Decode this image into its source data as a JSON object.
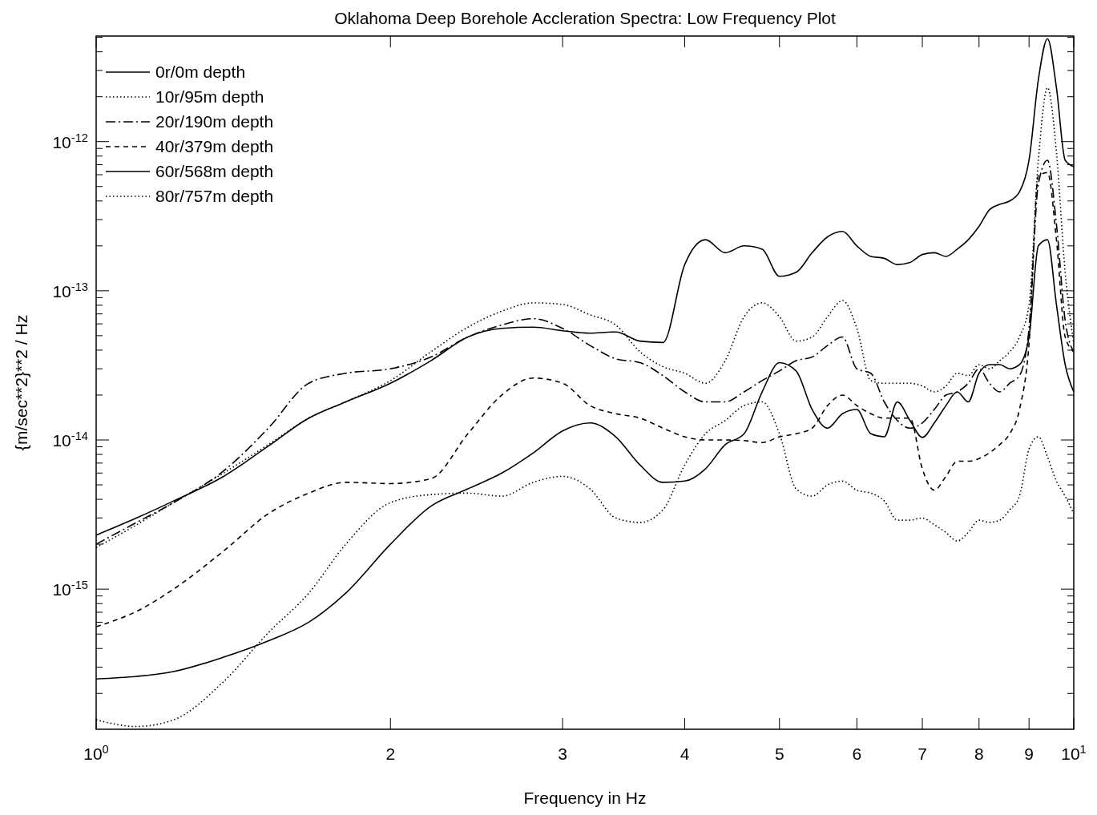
{
  "chart_data": {
    "type": "line",
    "title": "Oklahoma Deep Borehole Accleration Spectra: Low Frequency Plot",
    "xlabel": "Frequency in Hz",
    "ylabel": "{m/sec**2}**2 / Hz",
    "log": "xy",
    "grid": false,
    "legend": "top left",
    "x": [
      1,
      1.1,
      1.2,
      1.35,
      1.5,
      1.65,
      1.8,
      2,
      2.2,
      2.4,
      2.6,
      2.8,
      3,
      3.2,
      3.4,
      3.6,
      3.8,
      4,
      4.2,
      4.4,
      4.6,
      4.8,
      5,
      5.2,
      5.4,
      5.6,
      5.8,
      6,
      6.2,
      6.4,
      6.6,
      6.8,
      7,
      7.2,
      7.4,
      7.6,
      7.8,
      8,
      8.2,
      8.4,
      8.6,
      8.8,
      9,
      9.2,
      9.4,
      9.6,
      9.8,
      10
    ],
    "xlim": [
      1,
      10
    ],
    "xticks": [
      {
        "value": 1,
        "label": "10$^{0}$"
      },
      2,
      3,
      4,
      5,
      6,
      7,
      8,
      9,
      {
        "value": 10,
        "label": "10$^{1}$"
      }
    ],
    "ylim": [
      1.15e-16,
      5.1e-12
    ],
    "yticks": [
      {
        "value": 2e-16,
        "label": null
      },
      {
        "value": 3e-16,
        "label": null
      },
      {
        "value": 4e-16,
        "label": null
      },
      {
        "value": 5e-16,
        "label": null
      },
      {
        "value": 6e-16,
        "label": null
      },
      {
        "value": 7e-16,
        "label": null
      },
      {
        "value": 8e-16,
        "label": null
      },
      {
        "value": 9e-16,
        "label": null
      },
      {
        "value": 1e-15,
        "label": "10$^{-15}$"
      },
      {
        "value": 2e-15,
        "label": null
      },
      {
        "value": 3e-15,
        "label": null
      },
      {
        "value": 4e-15,
        "label": null
      },
      {
        "value": 5e-15,
        "label": null
      },
      {
        "value": 6e-15,
        "label": null
      },
      {
        "value": 7e-15,
        "label": null
      },
      {
        "value": 8e-15,
        "label": null
      },
      {
        "value": 9e-15,
        "label": null
      },
      {
        "value": 1e-14,
        "label": "10$^{-14}$"
      },
      {
        "value": 2e-14,
        "label": null
      },
      {
        "value": 3e-14,
        "label": null
      },
      {
        "value": 4e-14,
        "label": null
      },
      {
        "value": 5e-14,
        "label": null
      },
      {
        "value": 6e-14,
        "label": null
      },
      {
        "value": 7e-14,
        "label": null
      },
      {
        "value": 8e-14,
        "label": null
      },
      {
        "value": 9e-14,
        "label": null
      },
      {
        "value": 1e-13,
        "label": "10$^{-13}$"
      },
      {
        "value": 2e-13,
        "label": null
      },
      {
        "value": 3e-13,
        "label": null
      },
      {
        "value": 4e-13,
        "label": null
      },
      {
        "value": 5e-13,
        "label": null
      },
      {
        "value": 6e-13,
        "label": null
      },
      {
        "value": 7e-13,
        "label": null
      },
      {
        "value": 8e-13,
        "label": null
      },
      {
        "value": 9e-13,
        "label": null
      },
      {
        "value": 1e-12,
        "label": "10$^{-12}$"
      },
      {
        "value": 2e-12,
        "label": null
      },
      {
        "value": 3e-12,
        "label": null
      },
      {
        "value": 4e-12,
        "label": null
      },
      {
        "value": 5e-12,
        "label": null
      }
    ],
    "series": [
      {
        "name": "0r/0m depth",
        "color": "#000000",
        "line_style": "solid",
        "values": [
          2.3e-15,
          3e-15,
          3.9e-15,
          5.7e-15,
          9.1e-15,
          1.4e-14,
          1.8e-14,
          2.4e-14,
          3.4e-14,
          4.9e-14,
          5.6e-14,
          5.7e-14,
          5.4e-14,
          5.2e-14,
          5.3e-14,
          4.6e-14,
          4.5e-14,
          1.5e-13,
          2.2e-13,
          1.8e-13,
          2e-13,
          1.9e-13,
          1.25e-13,
          1.33e-13,
          1.8e-13,
          2.3e-13,
          2.5e-13,
          2e-13,
          1.7e-13,
          1.65e-13,
          1.5e-13,
          1.55e-13,
          1.75e-13,
          1.8e-13,
          1.7e-13,
          1.9e-13,
          2.2e-13,
          2.7e-13,
          3.5e-13,
          3.8e-13,
          4e-13,
          4.6e-13,
          7.5e-13,
          2.6e-12,
          4.9e-12,
          2.3e-12,
          7.5e-13,
          6.8e-13
        ]
      },
      {
        "name": "10r/95m depth",
        "color": "#000000",
        "line_style": "dotted",
        "values": [
          1.9e-15,
          2.7e-15,
          3.8e-15,
          6e-15,
          9.3e-15,
          1.4e-14,
          1.8e-14,
          2.5e-14,
          3.9e-14,
          5.7e-14,
          7.3e-14,
          8.3e-14,
          8.1e-14,
          6.9e-14,
          5.9e-14,
          3.9e-14,
          3.1e-14,
          2.8e-14,
          2.4e-14,
          3.4e-14,
          6.7e-14,
          8.3e-14,
          6.7e-14,
          4.6e-14,
          4.9e-14,
          6.7e-14,
          8.6e-14,
          5.6e-14,
          2.5e-14,
          2.4e-14,
          2.4e-14,
          2.4e-14,
          2.3e-14,
          2.1e-14,
          2.3e-14,
          2.8e-14,
          2.7e-14,
          3.2e-14,
          3e-14,
          3.4e-14,
          3.9e-14,
          4.9e-14,
          8.1e-14,
          7.5e-13,
          2.3e-12,
          8.5e-13,
          1.33e-13,
          4.4e-14
        ]
      },
      {
        "name": "20r/190m depth",
        "color": "#000000",
        "line_style": "dashdot",
        "values": [
          2e-15,
          2.8e-15,
          3.8e-15,
          6.2e-15,
          1.2e-14,
          2.4e-14,
          2.8e-14,
          3e-14,
          3.6e-14,
          4.9e-14,
          5.9e-14,
          6.5e-14,
          5.6e-14,
          4.3e-14,
          3.5e-14,
          3.3e-14,
          2.7e-14,
          2.1e-14,
          1.8e-14,
          1.8e-14,
          2.1e-14,
          2.5e-14,
          2.9e-14,
          3.4e-14,
          3.6e-14,
          4.3e-14,
          4.9e-14,
          3e-14,
          2.8e-14,
          1.8e-14,
          1.35e-14,
          1.2e-14,
          1.3e-14,
          1.6e-14,
          2e-14,
          2.1e-14,
          2.4e-14,
          3e-14,
          2.4e-14,
          2.1e-14,
          2.4e-14,
          2.7e-14,
          5.6e-14,
          5.2e-13,
          7.5e-13,
          2.8e-13,
          6.3e-14,
          3.9e-14
        ]
      },
      {
        "name": "40r/379m depth",
        "color": "#000000",
        "line_style": "dashed",
        "values": [
          5.6e-16,
          7.1e-16,
          1e-15,
          1.8e-15,
          3.2e-15,
          4.4e-15,
          5.2e-15,
          5.1e-15,
          5.5e-15,
          1.1e-14,
          2e-14,
          2.6e-14,
          2.4e-14,
          1.7e-14,
          1.5e-14,
          1.4e-14,
          1.2e-14,
          1.05e-14,
          1e-14,
          1e-14,
          9.9e-15,
          9.6e-15,
          1.05e-14,
          1.1e-14,
          1.2e-14,
          1.7e-14,
          2e-14,
          1.7e-14,
          1.5e-14,
          1.4e-14,
          1.4e-14,
          1.4e-14,
          6.4e-15,
          4.6e-15,
          5.7e-15,
          7.2e-15,
          7.2e-15,
          7.5e-15,
          8.2e-15,
          9.3e-15,
          1.1e-14,
          1.6e-14,
          4.4e-14,
          5.9e-13,
          6.2e-13,
          2.2e-13,
          4.9e-14,
          3.9e-14
        ]
      },
      {
        "name": "60r/568m depth",
        "color": "#000000",
        "line_style": "solid",
        "values": [
          2.5e-16,
          2.6e-16,
          2.8e-16,
          3.5e-16,
          4.5e-16,
          6e-16,
          9.4e-16,
          2e-15,
          3.6e-15,
          4.7e-15,
          6e-15,
          8.2e-15,
          1.15e-14,
          1.3e-14,
          1.05e-14,
          6.8e-15,
          5.2e-15,
          5.3e-15,
          6.4e-15,
          9.3e-15,
          1.1e-14,
          2.1e-14,
          3.3e-14,
          2.9e-14,
          1.6e-14,
          1.2e-14,
          1.5e-14,
          1.6e-14,
          1.1e-14,
          1.05e-14,
          1.8e-14,
          1.35e-14,
          1.04e-14,
          1.3e-14,
          1.7e-14,
          2.1e-14,
          1.8e-14,
          2.8e-14,
          3.2e-14,
          3.2e-14,
          3e-14,
          3.2e-14,
          4.9e-14,
          2e-13,
          2.2e-13,
          8.1e-14,
          3.2e-14,
          2.1e-14
        ]
      },
      {
        "name": "80r/757m depth",
        "color": "#000000",
        "line_style": "dotted",
        "values": [
          1.33e-16,
          1.2e-16,
          1.33e-16,
          2.4e-16,
          5.1e-16,
          9.4e-16,
          2e-15,
          3.8e-15,
          4.3e-15,
          4.4e-15,
          4.2e-15,
          5.2e-15,
          5.7e-15,
          4.7e-15,
          3e-15,
          2.8e-15,
          3.4e-15,
          6.8e-15,
          1.1e-14,
          1.35e-14,
          1.7e-14,
          1.8e-14,
          1.1e-14,
          4.7e-15,
          4.2e-15,
          5e-15,
          5.3e-15,
          4.6e-15,
          4.4e-15,
          3.9e-15,
          2.9e-15,
          2.9e-15,
          3e-15,
          2.7e-15,
          2.4e-15,
          2.1e-15,
          2.4e-15,
          2.9e-15,
          2.8e-15,
          2.9e-15,
          3.4e-15,
          4.2e-15,
          8.7e-15,
          1.05e-14,
          7.7e-15,
          5.3e-15,
          4.2e-15,
          3.2e-15
        ]
      }
    ]
  }
}
